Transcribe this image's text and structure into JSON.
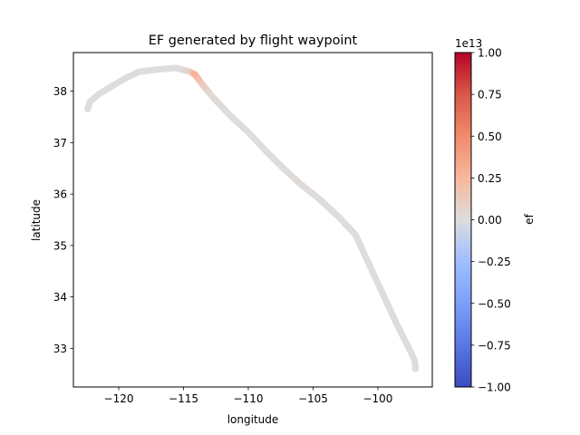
{
  "chart_data": {
    "type": "scatter",
    "title": "EF generated by flight waypoint",
    "xlabel": "longitude",
    "ylabel": "latitude",
    "xlim": [
      -123.5,
      -95.8
    ],
    "ylim": [
      32.25,
      38.75
    ],
    "xticks": [
      -120,
      -115,
      -110,
      -105,
      -100
    ],
    "xtick_labels": [
      "−120",
      "−115",
      "−110",
      "−105",
      "−100"
    ],
    "yticks": [
      33,
      34,
      35,
      36,
      37,
      38
    ],
    "ytick_labels": [
      "33",
      "34",
      "35",
      "36",
      "37",
      "38"
    ],
    "colorbar": {
      "label": "ef",
      "colormap": "coolwarm",
      "exponent_label": "1e13",
      "vmin": -1.0,
      "vmax": 1.0,
      "ticks": [
        1.0,
        0.75,
        0.5,
        0.25,
        0.0,
        -0.25,
        -0.5,
        -0.75,
        -1.0
      ],
      "tick_labels": [
        "1.00",
        "0.75",
        "0.50",
        "0.25",
        "0.00",
        "−0.25",
        "−0.50",
        "−0.75",
        "−1.00"
      ]
    },
    "grid": false,
    "points": [
      {
        "lon": -122.4,
        "lat": 37.65,
        "ef": 0.0
      },
      {
        "lon": -122.2,
        "lat": 37.8,
        "ef": 0.0
      },
      {
        "lon": -121.5,
        "lat": 37.95,
        "ef": 0.0
      },
      {
        "lon": -120.5,
        "lat": 38.1,
        "ef": 0.0
      },
      {
        "lon": -119.5,
        "lat": 38.25,
        "ef": 0.0
      },
      {
        "lon": -118.4,
        "lat": 38.38,
        "ef": 0.0
      },
      {
        "lon": -117.0,
        "lat": 38.42,
        "ef": 0.0
      },
      {
        "lon": -115.6,
        "lat": 38.45,
        "ef": 0.0
      },
      {
        "lon": -114.5,
        "lat": 38.38,
        "ef": 0.05
      },
      {
        "lon": -114.1,
        "lat": 38.32,
        "ef": 0.3
      },
      {
        "lon": -113.6,
        "lat": 38.15,
        "ef": 0.15
      },
      {
        "lon": -112.8,
        "lat": 37.9,
        "ef": 0.03
      },
      {
        "lon": -111.5,
        "lat": 37.55,
        "ef": 0.0
      },
      {
        "lon": -110.0,
        "lat": 37.2,
        "ef": 0.0
      },
      {
        "lon": -108.5,
        "lat": 36.8,
        "ef": 0.0
      },
      {
        "lon": -107.3,
        "lat": 36.5,
        "ef": 0.0
      },
      {
        "lon": -106.0,
        "lat": 36.2,
        "ef": 0.03
      },
      {
        "lon": -104.5,
        "lat": 35.9,
        "ef": 0.0
      },
      {
        "lon": -103.0,
        "lat": 35.55,
        "ef": 0.0
      },
      {
        "lon": -101.7,
        "lat": 35.2,
        "ef": 0.0
      },
      {
        "lon": -100.8,
        "lat": 34.7,
        "ef": 0.0
      },
      {
        "lon": -99.6,
        "lat": 34.05,
        "ef": 0.0
      },
      {
        "lon": -98.5,
        "lat": 33.45,
        "ef": 0.0
      },
      {
        "lon": -97.4,
        "lat": 32.9,
        "ef": 0.0
      },
      {
        "lon": -97.15,
        "lat": 32.75,
        "ef": 0.0
      },
      {
        "lon": -97.1,
        "lat": 32.6,
        "ef": 0.0
      }
    ]
  }
}
